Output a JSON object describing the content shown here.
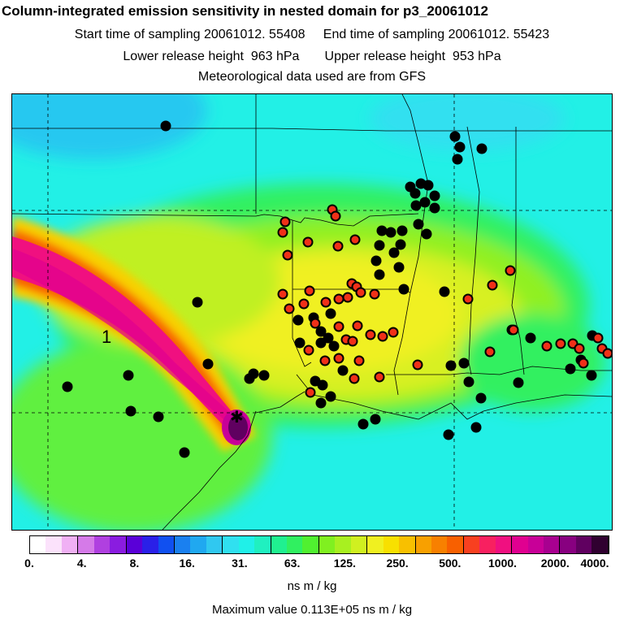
{
  "header": {
    "title": "Column-integrated emission sensitivity in nested domain for p3_20061012",
    "line1": "Start time of sampling 20061012. 55408     End time of sampling 20061012. 55423",
    "line2": "Lower release height  963 hPa       Upper release height  953 hPa",
    "line3": "Meteorological data used are from GFS"
  },
  "map": {
    "plume_label": "1",
    "release_marker": "✱"
  },
  "colorbar": {
    "tick_labels": [
      "0.",
      "4.",
      "8.",
      "16.",
      "31.",
      "63.",
      "125.",
      "250.",
      "500.",
      "1000.",
      "2000.",
      "4000."
    ],
    "colors": [
      "#ffffff",
      "#fbe2fb",
      "#f0b0f4",
      "#d57ae8",
      "#b040e0",
      "#8a1ce0",
      "#5a00d8",
      "#2a20e8",
      "#1050f0",
      "#1a80f0",
      "#20a8f0",
      "#30c8f0",
      "#30e0f0",
      "#20f0e8",
      "#20f0c0",
      "#20f090",
      "#30f060",
      "#50f030",
      "#80f020",
      "#a8f020",
      "#d0f020",
      "#f0f020",
      "#f8e000",
      "#f8c000",
      "#f8a000",
      "#f88000",
      "#f86000",
      "#f84020",
      "#f82060",
      "#f01080",
      "#e00090",
      "#c80098",
      "#a80090",
      "#880080",
      "#600060",
      "#300030"
    ],
    "unit": "ns m / kg",
    "max_value": "Maximum value  0.113E+05 ns m / kg"
  }
}
